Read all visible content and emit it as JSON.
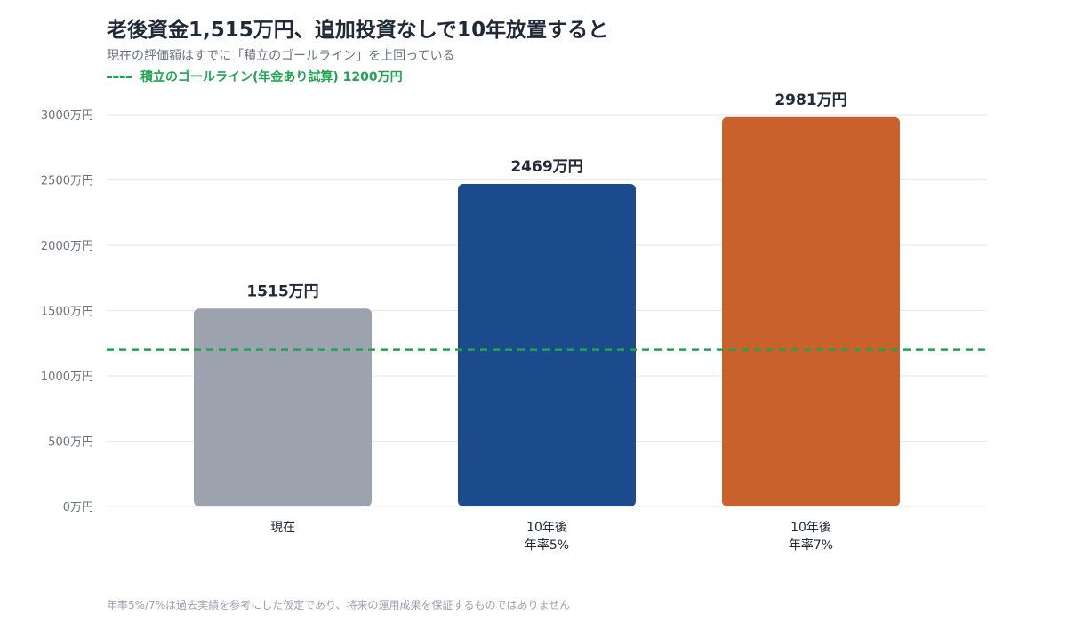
{
  "header": {
    "title": "老後資金1,515万円、追加投資なしで10年放置すると",
    "subtitle": "現在の評価額はすでに「積立のゴールライン」を上回っている"
  },
  "legend": {
    "goal_label": "積立のゴールライン(年金あり試算) 1200万円"
  },
  "footnote": "年率5%/7%は過去実績を参考にした仮定であり、将来の運用成果を保証するものではありません",
  "colors": {
    "current": "#9ca3af",
    "rate5": "#1b4b8c",
    "rate7": "#c8612b",
    "goal": "#22a352",
    "grid": "#e5e7eb",
    "axis_text": "#6b7280",
    "label_text": "#1f2937"
  },
  "chart_data": {
    "type": "bar",
    "title": "老後資金1,515万円、追加投資なしで10年放置すると",
    "unit": "万円",
    "ylim": [
      0,
      3000
    ],
    "yticks": [
      {
        "value": 0,
        "label": "0万円"
      },
      {
        "value": 500,
        "label": "500万円"
      },
      {
        "value": 1000,
        "label": "1000万円"
      },
      {
        "value": 1500,
        "label": "1500万円"
      },
      {
        "value": 2000,
        "label": "2000万円"
      },
      {
        "value": 2500,
        "label": "2500万円"
      },
      {
        "value": 3000,
        "label": "3000万円"
      }
    ],
    "grid": true,
    "categories": [
      {
        "lines": [
          "現在"
        ]
      },
      {
        "lines": [
          "10年後",
          "年率5%"
        ]
      },
      {
        "lines": [
          "10年後",
          "年率7%"
        ]
      }
    ],
    "values": [
      1515,
      2469,
      2981
    ],
    "value_labels": [
      "1515万円",
      "2469万円",
      "2981万円"
    ],
    "bar_colors": [
      "#9ca3af",
      "#1b4b8c",
      "#c8612b"
    ],
    "reference_line": {
      "value": 1200,
      "label": "積立のゴールライン(年金あり試算) 1200万円",
      "style": "dashed",
      "color": "#22a352"
    }
  }
}
